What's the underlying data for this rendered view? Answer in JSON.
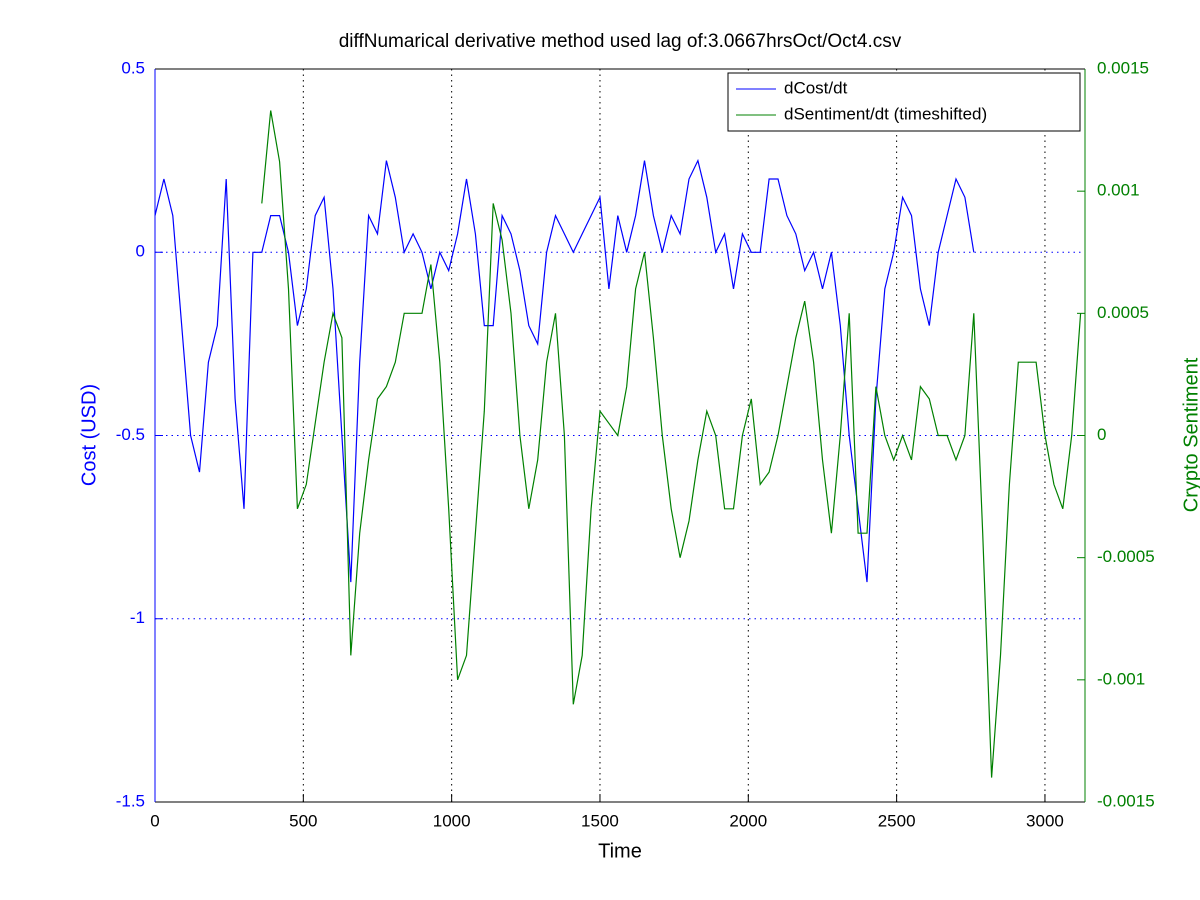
{
  "chart_data": {
    "type": "line",
    "title": "diffNumarical derivative method used lag of:3.0667hrsOct/Oct4.csv",
    "x_label": "Time",
    "y_label": "Cost (USD)",
    "y2_label": "Crypto Sentiment",
    "x": [
      0,
      30,
      60,
      90,
      120,
      150,
      180,
      210,
      240,
      270,
      300,
      330,
      360,
      390,
      420,
      450,
      480,
      510,
      540,
      570,
      600,
      630,
      660,
      690,
      720,
      750,
      780,
      810,
      840,
      870,
      900,
      930,
      960,
      990,
      1020,
      1050,
      1080,
      1110,
      1140,
      1170,
      1200,
      1230,
      1260,
      1290,
      1320,
      1350,
      1380,
      1410,
      1440,
      1470,
      1500,
      1530,
      1560,
      1590,
      1620,
      1650,
      1680,
      1710,
      1740,
      1770,
      1800,
      1830,
      1860,
      1890,
      1920,
      1950,
      1980,
      2010,
      2040,
      2070,
      2100,
      2130,
      2160,
      2190,
      2220,
      2250,
      2280,
      2310,
      2340,
      2370,
      2400,
      2430,
      2460,
      2490,
      2520,
      2550,
      2580,
      2610,
      2640,
      2670,
      2700,
      2730,
      2760,
      2790,
      2820,
      2850,
      2880,
      2910,
      2940,
      2970,
      3000,
      3030,
      3060,
      3090,
      3120
    ],
    "series": [
      {
        "name": "dCost/dt",
        "color": "#0000ff",
        "axis": "y",
        "values": [
          0.1,
          0.2,
          0.1,
          -0.2,
          -0.5,
          -0.6,
          -0.3,
          -0.2,
          0.2,
          -0.4,
          -0.7,
          0.0,
          0.0,
          0.1,
          0.1,
          0.0,
          -0.2,
          -0.1,
          0.1,
          0.15,
          -0.1,
          -0.5,
          -0.9,
          -0.3,
          0.1,
          0.05,
          0.25,
          0.15,
          0.0,
          0.05,
          0.0,
          -0.1,
          0.0,
          -0.05,
          0.05,
          0.2,
          0.05,
          -0.2,
          -0.2,
          0.1,
          0.05,
          -0.05,
          -0.2,
          -0.25,
          0.0,
          0.1,
          0.05,
          0.0,
          0.05,
          0.1,
          0.15,
          -0.1,
          0.1,
          0.0,
          0.1,
          0.25,
          0.1,
          0.0,
          0.1,
          0.05,
          0.2,
          0.25,
          0.15,
          0.0,
          0.05,
          -0.1,
          0.05,
          0.0,
          0.0,
          0.2,
          0.2,
          0.1,
          0.05,
          -0.05,
          0.0,
          -0.1,
          0.0,
          -0.2,
          -0.5,
          -0.7,
          -0.9,
          -0.4,
          -0.1,
          0.0,
          0.15,
          0.1,
          -0.1,
          -0.2,
          0.0,
          0.1,
          0.2,
          0.15,
          0.0,
          null,
          null,
          null,
          null,
          null,
          null,
          null,
          null,
          null,
          null,
          null,
          null
        ]
      },
      {
        "name": "dSentiment/dt (timeshifted)",
        "color": "#008000",
        "axis": "y2",
        "values": [
          null,
          null,
          null,
          null,
          null,
          null,
          null,
          null,
          null,
          null,
          null,
          null,
          0.00095,
          0.00133,
          0.00112,
          0.0006,
          -0.0003,
          -0.0002,
          5e-05,
          0.0003,
          0.0005,
          0.0004,
          -0.0009,
          -0.0004,
          -0.0001,
          0.00015,
          0.0002,
          0.0003,
          0.0005,
          0.0005,
          0.0005,
          0.0007,
          0.0003,
          -0.0003,
          -0.001,
          -0.0009,
          -0.0004,
          0.0001,
          0.00095,
          0.0008,
          0.0005,
          0.0,
          -0.0003,
          -0.0001,
          0.0003,
          0.0005,
          0.0,
          -0.0011,
          -0.0009,
          -0.0003,
          0.0001,
          5e-05,
          0.0,
          0.0002,
          0.0006,
          0.00075,
          0.0004,
          0.0,
          -0.0003,
          -0.0005,
          -0.00035,
          -0.0001,
          0.0001,
          0.0,
          -0.0003,
          -0.0003,
          0.0,
          0.00015,
          -0.0002,
          -0.00015,
          0.0,
          0.0002,
          0.0004,
          0.00055,
          0.0003,
          -0.0001,
          -0.0004,
          0.0,
          0.0005,
          -0.0004,
          -0.0004,
          0.0002,
          0.0,
          -0.0001,
          0.0,
          -0.0001,
          0.0002,
          0.00015,
          0.0,
          0.0,
          -0.0001,
          0.0,
          0.0005,
          -0.0004,
          -0.0014,
          -0.0009,
          -0.0002,
          0.0003,
          0.0003,
          0.0003,
          0.0,
          -0.0002,
          -0.0003,
          0.0,
          0.0005
        ]
      }
    ],
    "xlim": [
      0,
      3135
    ],
    "xticks": [
      0,
      500,
      1000,
      1500,
      2000,
      2500,
      3000
    ],
    "ylim": [
      -1.5,
      0.5
    ],
    "yticks": [
      -1.5,
      -1,
      -0.5,
      0,
      0.5
    ],
    "y2lim": [
      -0.0015,
      0.0015
    ],
    "y2ticks": [
      -0.0015,
      -0.001,
      -0.0005,
      0,
      0.0005,
      0.001,
      0.0015
    ],
    "grid": true,
    "legend": "north-east"
  }
}
